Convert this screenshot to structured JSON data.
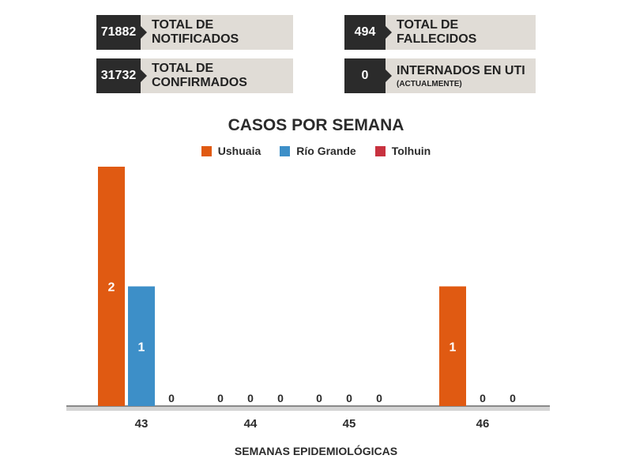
{
  "stats": [
    {
      "value": "71882",
      "label": "TOTAL DE NOTIFICADOS",
      "sub": ""
    },
    {
      "value": "494",
      "label": "TOTAL DE FALLECIDOS",
      "sub": ""
    },
    {
      "value": "31732",
      "label": "TOTAL DE CONFIRMADOS",
      "sub": ""
    },
    {
      "value": "0",
      "label": "INTERNADOS EN UTI",
      "sub": "(ACTUALMENTE)"
    }
  ],
  "chart_data": {
    "type": "bar",
    "title": "CASOS POR SEMANA",
    "xlabel": "SEMANAS EPIDEMIOLÓGICAS",
    "ylabel": "",
    "categories": [
      "43",
      "44",
      "45",
      "46"
    ],
    "series": [
      {
        "name": "Ushuaia",
        "color": "#e05a12",
        "values": [
          2,
          0,
          0,
          1
        ]
      },
      {
        "name": "Río Grande",
        "color": "#3d8fc8",
        "values": [
          1,
          0,
          0,
          0
        ]
      },
      {
        "name": "Tolhuin",
        "color": "#c8323f",
        "values": [
          0,
          0,
          0,
          0
        ]
      }
    ],
    "ylim": [
      0,
      2
    ],
    "grid": false,
    "legend_position": "top-center",
    "data_labels": true
  }
}
